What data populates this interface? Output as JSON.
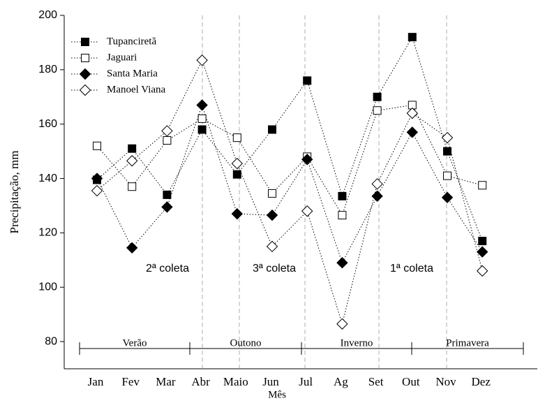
{
  "chart_data": {
    "type": "line",
    "x_label": "Mês",
    "y_label": "Precipitação, mm",
    "categories": [
      "Jan",
      "Fev",
      "Mar",
      "Abr",
      "Maio",
      "Jun",
      "Jul",
      "Ag",
      "Set",
      "Out",
      "Nov",
      "Dez"
    ],
    "ylim": [
      70,
      200
    ],
    "yticks": [
      80,
      100,
      120,
      140,
      160,
      180,
      200
    ],
    "legend": "top-left",
    "series": [
      {
        "name": "Tupanciretã",
        "color": "#000000",
        "marker": "square",
        "filled": true,
        "values": [
          139.5,
          151,
          134,
          158,
          141.5,
          158,
          176,
          133.5,
          170,
          192,
          150,
          117
        ]
      },
      {
        "name": "Jaguari",
        "color": "#000000",
        "marker": "square",
        "filled": false,
        "values": [
          152,
          137,
          154,
          162,
          155,
          134.5,
          148,
          126.5,
          165,
          167,
          141,
          137.5
        ]
      },
      {
        "name": "Santa Maria",
        "color": "#000000",
        "marker": "diamond",
        "filled": true,
        "values": [
          140,
          114.5,
          129.5,
          167,
          127,
          126.5,
          147,
          109,
          133.5,
          157,
          133,
          113
        ]
      },
      {
        "name": "Manoel Viana",
        "color": "#000000",
        "marker": "diamond",
        "filled": false,
        "values": [
          135.5,
          146.5,
          157.5,
          183.5,
          145.5,
          115,
          128,
          86.5,
          138,
          164,
          155,
          106
        ]
      }
    ],
    "seasons": [
      "Verão",
      "Outono",
      "Inverno",
      "Primavera"
    ],
    "annotations": [
      "2ª coleta",
      "3ª coleta",
      "1ª coleta"
    ]
  }
}
